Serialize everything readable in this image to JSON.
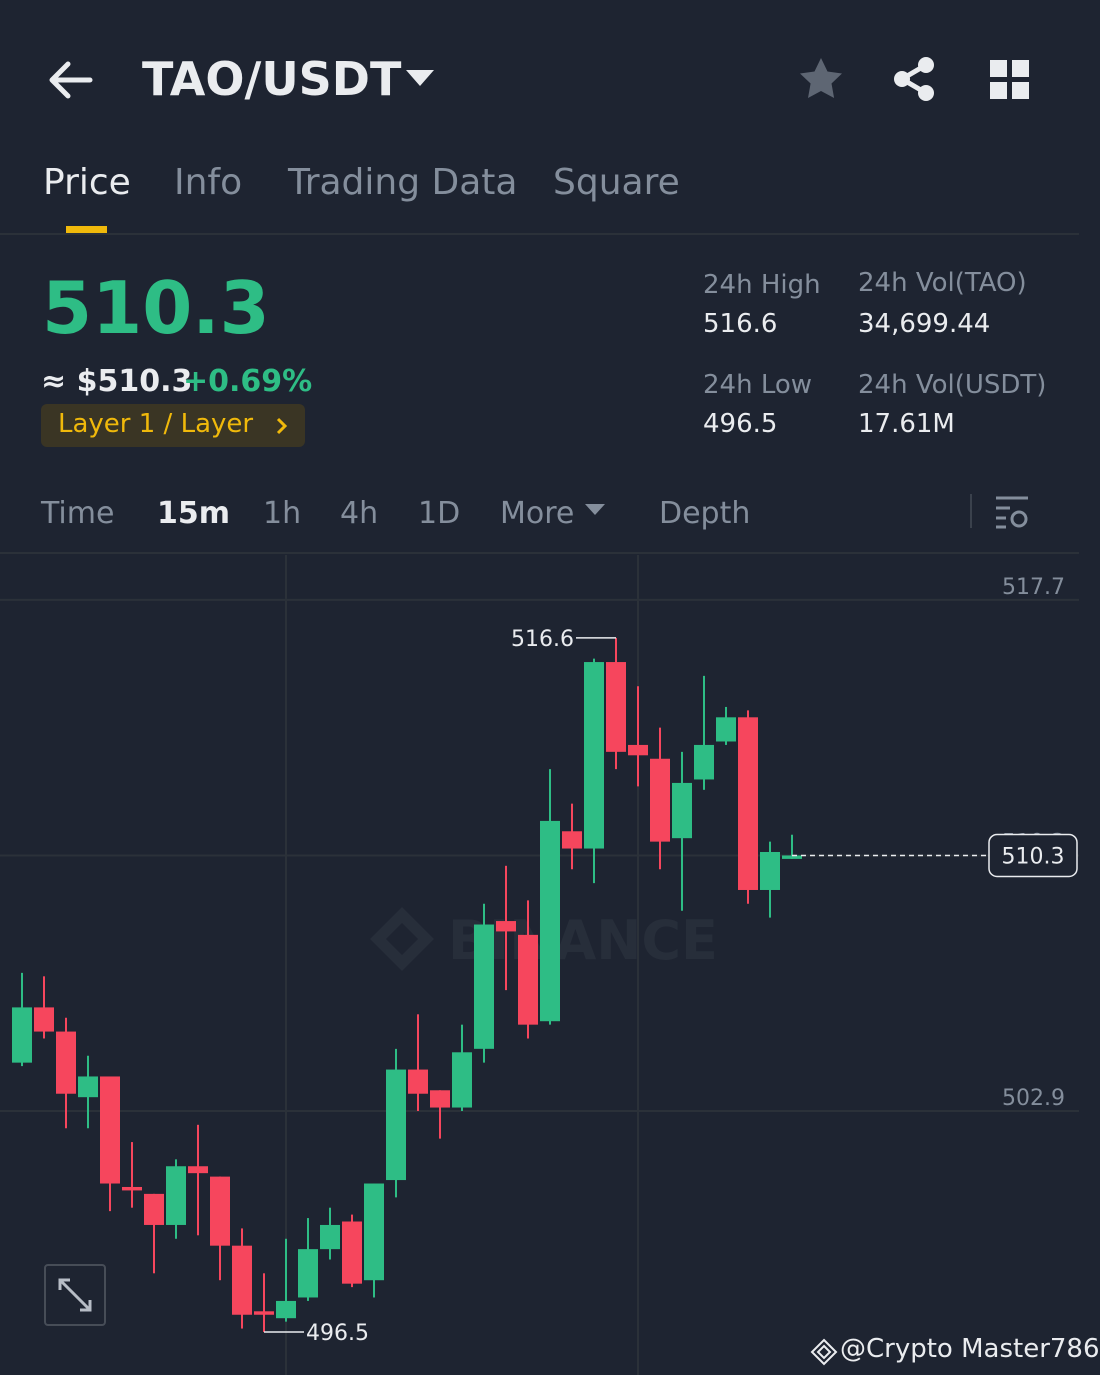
{
  "header": {
    "pair": "TAO/USDT"
  },
  "tabs": [
    "Price",
    "Info",
    "Trading Data",
    "Square"
  ],
  "price": {
    "last": "510.3",
    "fiat": "≈ $510.3",
    "change": "+0.69%",
    "tag": "Layer 1 / Layer"
  },
  "stats": [
    {
      "label": "24h High",
      "value": "516.6"
    },
    {
      "label": "24h Vol(TAO)",
      "value": "34,699.44"
    },
    {
      "label": "24h Low",
      "value": "496.5"
    },
    {
      "label": "24h Vol(USDT)",
      "value": "17.61M"
    }
  ],
  "intervals": [
    "Time",
    "15m",
    "1h",
    "4h",
    "1D",
    "More",
    "Depth"
  ],
  "watermark": "BINANCE",
  "credit": "@Crypto Master786",
  "chart_data": {
    "type": "candlestick",
    "up_color": "#2ebd85",
    "down_color": "#f6465d",
    "open": [
      504.3,
      505.9,
      505.2,
      503.3,
      503.9,
      500.7,
      500.5,
      499.6,
      501.3,
      501.0,
      499.0,
      497.1,
      496.9,
      497.5,
      498.9,
      499.7,
      498.0,
      500.9,
      504.1,
      503.5,
      503.0,
      504.7,
      508.4,
      508.0,
      505.5,
      511.0,
      510.5,
      515.9,
      513.5,
      513.1,
      510.8,
      512.5,
      513.6,
      514.3,
      509.3,
      510.2
    ],
    "high": [
      506.9,
      506.8,
      505.6,
      504.5,
      503.9,
      502.0,
      500.5,
      501.5,
      502.5,
      501.0,
      499.5,
      498.2,
      499.2,
      499.8,
      500.1,
      499.9,
      500.8,
      504.7,
      505.7,
      503.5,
      505.4,
      508.9,
      510.0,
      509.0,
      512.8,
      511.8,
      516.0,
      516.6,
      515.2,
      514.0,
      513.3,
      515.5,
      514.6,
      514.5,
      510.7,
      510.9
    ],
    "low": [
      504.2,
      505.0,
      502.4,
      502.4,
      500.0,
      500.1,
      498.2,
      499.2,
      499.3,
      498.0,
      496.6,
      496.5,
      496.8,
      497.4,
      498.6,
      497.8,
      497.5,
      500.4,
      502.9,
      502.1,
      502.9,
      504.3,
      506.4,
      505.0,
      505.4,
      509.9,
      509.5,
      512.8,
      512.3,
      509.9,
      508.7,
      512.2,
      513.5,
      508.9,
      508.5,
      510.2
    ],
    "close": [
      505.9,
      505.2,
      503.4,
      503.9,
      500.8,
      500.6,
      499.6,
      501.3,
      501.1,
      499.0,
      497.0,
      497.0,
      497.4,
      498.9,
      499.6,
      497.9,
      500.8,
      504.1,
      503.4,
      503.0,
      504.6,
      508.3,
      508.1,
      505.4,
      511.3,
      510.5,
      515.9,
      513.3,
      513.2,
      510.7,
      512.4,
      513.5,
      514.3,
      509.3,
      510.4,
      510.3
    ],
    "ylim": [
      495.4,
      519.0
    ],
    "yticks": [
      517.7,
      510.3,
      502.9
    ],
    "grid": true,
    "max_marker": 516.6,
    "min_marker": 496.5,
    "last_price": 510.3
  }
}
